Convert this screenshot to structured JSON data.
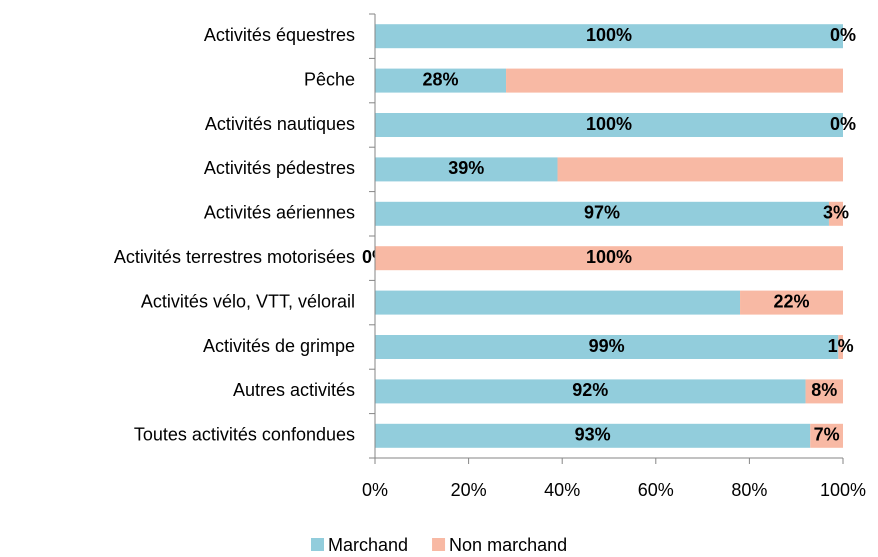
{
  "chart_data": {
    "type": "stacked_barh",
    "categories": [
      "Activités équestres",
      "Pêche",
      "Activités nautiques",
      "Activités pédestres",
      "Activités aériennes",
      "Activités terrestres motorisées",
      "Activités vélo, VTT, vélorail",
      "Activités de grimpe",
      "Autres activités",
      "Toutes activités confondues"
    ],
    "series": [
      {
        "name": "Marchand",
        "color": "#92cddc",
        "values": [
          100,
          28,
          100,
          39,
          97,
          0,
          78,
          99,
          92,
          93
        ],
        "value_labels": [
          "100%",
          "28%",
          "100%",
          "39%",
          "97%",
          "0%",
          null,
          "99%",
          "92%",
          "93%"
        ]
      },
      {
        "name": "Non marchand",
        "color": "#f8b9a4",
        "values": [
          0,
          72,
          0,
          61,
          3,
          100,
          22,
          1,
          8,
          7
        ],
        "value_labels": [
          "0%",
          null,
          "0%",
          null,
          "3%",
          "100%",
          "22%",
          "1%",
          "8%",
          "7%"
        ]
      }
    ],
    "xlim": [
      0,
      100
    ],
    "xticks": [
      {
        "value": 0,
        "label": "0%"
      },
      {
        "value": 20,
        "label": "20%"
      },
      {
        "value": 40,
        "label": "40%"
      },
      {
        "value": 60,
        "label": "60%"
      },
      {
        "value": 80,
        "label": "80%"
      },
      {
        "value": 100,
        "label": "100%"
      }
    ],
    "legend": "bottom"
  }
}
